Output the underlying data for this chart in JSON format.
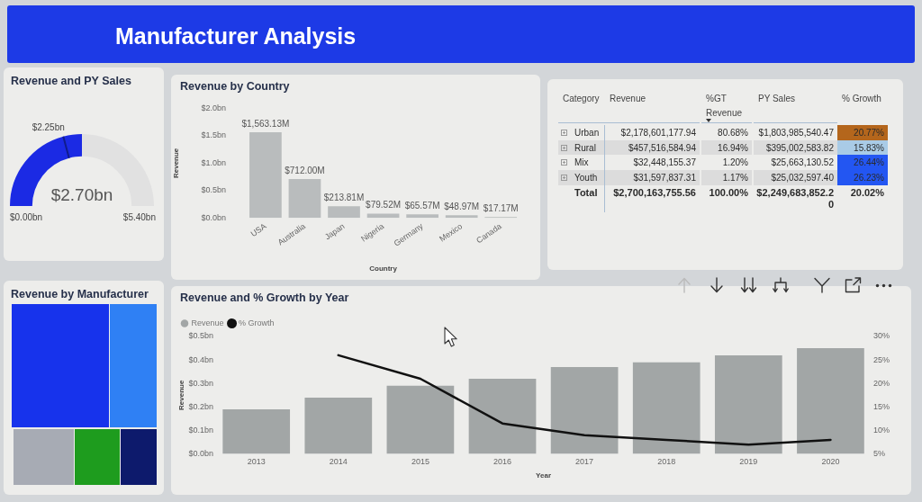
{
  "chart_data": [
    {
      "type": "other",
      "title": "Manufacturer Analysis"
    },
    {
      "type": "donut",
      "title": "Revenue and PY Sales",
      "categories": [
        null,
        null,
        null
      ],
      "values": [
        2.25,
        0.45,
        2.7
      ],
      "colors": [
        "#1b2ae4",
        "#1b2ae4",
        "#e1e1e1"
      ],
      "value_labels": [
        "$2.25bn",
        null,
        null
      ],
      "annotations": [
        "$2.70bn",
        "$0.00bn",
        "$5.40bn"
      ]
    },
    {
      "type": "bar",
      "title": "Revenue by Country",
      "xlabel": "Country",
      "ylabel": "Revenue",
      "categories": [
        "USA",
        "Australia",
        "Japan",
        "Nigeria",
        "Germany",
        "Mexico",
        "Canada"
      ],
      "values": [
        1563130000,
        712000000,
        213810000,
        79520000,
        65570000,
        48970000,
        17170000
      ],
      "value_labels": [
        "$1,563.13M",
        "$712.00M",
        "$213.81M",
        "$79.52M",
        "$65.57M",
        "$48.97M",
        "$17.17M"
      ],
      "color": "#b9bcbd",
      "ylim": [
        0,
        2000000000
      ],
      "yticks": [
        {
          "value": 0,
          "label": "$0.0bn"
        },
        {
          "value": 500000000,
          "label": "$0.5bn"
        },
        {
          "value": 1000000000,
          "label": "$1.0bn"
        },
        {
          "value": 1500000000,
          "label": "$1.5bn"
        },
        {
          "value": 2000000000,
          "label": "$2.0bn"
        }
      ]
    },
    {
      "type": "other",
      "annotations": [
        "Category",
        "Revenue",
        "%GT Revenue",
        "PY Sales",
        "% Growth",
        "Urban",
        "$2,178,601,177.94",
        "80.68%",
        "$1,803,985,540.47",
        "20.77%",
        "Rural",
        "$457,516,584.94",
        "16.94%",
        "$395,002,583.82",
        "15.83%",
        "Mix",
        "$32,448,155.37",
        "1.20%",
        "$25,663,130.52",
        "26.44%",
        "Youth",
        "$31,597,837.31",
        "1.17%",
        "$25,032,597.40",
        "26.23%",
        "Total",
        "$2,700,163,755.56",
        "100.00%",
        "$2,249,683,852.20",
        "20.02%"
      ],
      "colors": [
        null,
        null,
        null,
        null,
        null,
        null,
        null,
        null,
        null,
        "#b4661c",
        null,
        null,
        null,
        null,
        "#a9cbe6",
        null,
        null,
        null,
        null,
        "#2356f2",
        null,
        null,
        null,
        null,
        "#2356f2",
        null,
        null,
        null,
        null,
        null
      ]
    },
    {
      "type": "other",
      "title": "Revenue by Manufacturer",
      "colors": [
        "#1733ec",
        "#2f80f4",
        "#a7abb4",
        "#1e9c1e",
        "#0d1a6c"
      ]
    },
    {
      "type": "bar",
      "title": "Revenue and % Growth by Year",
      "xlabel": "Year",
      "ylabel": "Revenue",
      "categories": [
        "2013",
        "2014",
        "2015",
        "2016",
        "2017",
        "2018",
        "2019",
        "2020"
      ],
      "series": [
        {
          "name": "Revenue",
          "color": "#a2a6a6",
          "values": [
            0.19,
            0.24,
            0.29,
            0.32,
            0.37,
            0.39,
            0.42,
            0.45
          ]
        },
        {
          "name": "% Growth",
          "type": "line",
          "axis": "y2",
          "color": "#111111",
          "values": [
            null,
            26,
            21,
            11.5,
            9,
            8,
            7,
            8
          ]
        }
      ],
      "ylim": [
        0,
        0.5
      ],
      "yticks": [
        {
          "value": 0,
          "label": "$0.0bn"
        },
        {
          "value": 0.1,
          "label": "$0.1bn"
        },
        {
          "value": 0.2,
          "label": "$0.2bn"
        },
        {
          "value": 0.3,
          "label": "$0.3bn"
        },
        {
          "value": 0.4,
          "label": "$0.4bn"
        },
        {
          "value": 0.5,
          "label": "$0.5bn"
        }
      ],
      "y2lim": [
        5,
        30
      ],
      "y2ticks": [
        {
          "value": 5,
          "label": "5%"
        },
        {
          "value": 10,
          "label": "10%"
        },
        {
          "value": 15,
          "label": "15%"
        },
        {
          "value": 20,
          "label": "20%"
        },
        {
          "value": 25,
          "label": "25%"
        },
        {
          "value": 30,
          "label": "30%"
        }
      ],
      "legend": "top left"
    }
  ]
}
